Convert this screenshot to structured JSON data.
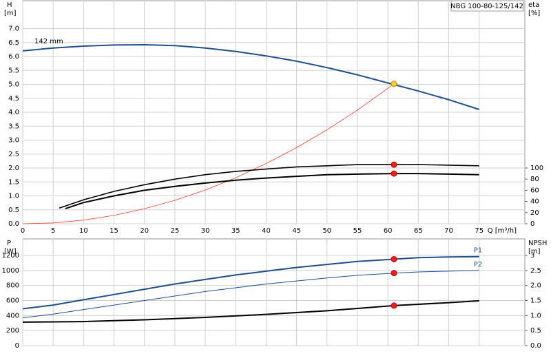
{
  "chart_data": [
    {
      "type": "line",
      "title": "NBG 100-80-125/142",
      "ylabel": "H",
      "yunit": "[m]",
      "y2label": "eta",
      "y2unit": "[%]",
      "xlabel": "Q [m³/h]",
      "xlim": [
        0,
        82.5
      ],
      "xticks": [
        0,
        5,
        10,
        15,
        20,
        25,
        30,
        35,
        40,
        45,
        50,
        55,
        60,
        65,
        70,
        75
      ],
      "xtick_labels": true,
      "ylim": [
        0,
        8
      ],
      "yticks": [
        {
          "value": 0,
          "label": "0.0"
        },
        0.5,
        {
          "value": 1,
          "label": "1.0"
        },
        1.5,
        {
          "value": 2,
          "label": "2.0"
        },
        2.5,
        {
          "value": 3,
          "label": "3.0"
        },
        3.5,
        {
          "value": 4,
          "label": "4.0"
        },
        4.5,
        {
          "value": 5,
          "label": "5.0"
        },
        5.5,
        {
          "value": 6,
          "label": "6.0"
        },
        6.5,
        {
          "value": 7,
          "label": "7.0"
        }
      ],
      "y2lim": [
        0,
        400
      ],
      "y2ticks": [
        0,
        20,
        40,
        60,
        80,
        100
      ],
      "grid": true,
      "series": [
        {
          "name": "142 mm",
          "label_at": "start",
          "color": "#1f4e8c",
          "width": 2,
          "x": [
            0,
            5,
            10,
            15,
            20,
            25,
            30,
            35,
            40,
            45,
            50,
            55,
            60,
            65,
            70,
            75
          ],
          "values": [
            6.2,
            6.3,
            6.37,
            6.41,
            6.42,
            6.39,
            6.3,
            6.18,
            6.02,
            5.83,
            5.6,
            5.34,
            5.05,
            4.76,
            4.45,
            4.1
          ]
        },
        {
          "color": "#ff3b30",
          "width": 0.8,
          "x": [
            0,
            5,
            10,
            15,
            20,
            25,
            30,
            35,
            40,
            45,
            50,
            55,
            60,
            61
          ],
          "values": [
            0,
            0.03,
            0.13,
            0.3,
            0.54,
            0.84,
            1.21,
            1.65,
            2.16,
            2.73,
            3.37,
            4.08,
            4.86,
            5.02
          ]
        },
        {
          "color": "#000000",
          "width": 1.6,
          "axis": "y2",
          "x": [
            6,
            10,
            15,
            20,
            25,
            30,
            35,
            40,
            45,
            50,
            55,
            61,
            65,
            70,
            75
          ],
          "values": [
            28,
            43,
            58,
            70,
            80,
            88,
            94,
            98,
            102,
            104,
            106,
            106,
            106,
            105,
            104
          ]
        },
        {
          "color": "#000000",
          "width": 2,
          "axis": "y2",
          "x": [
            7,
            10,
            15,
            20,
            25,
            30,
            35,
            40,
            45,
            50,
            55,
            61,
            65,
            70,
            75
          ],
          "values": [
            27,
            38,
            50,
            60,
            67,
            73,
            78,
            82,
            85,
            88,
            89,
            90,
            90,
            89,
            88
          ]
        },
        {
          "marker": true,
          "color": "#ffd21f",
          "stroke": "#c08a00",
          "x": [
            61
          ],
          "values": [
            5.02
          ]
        },
        {
          "marker": true,
          "color": "#ff1a1a",
          "stroke": "#c00000",
          "axis": "y2",
          "x": [
            61
          ],
          "values": [
            106
          ]
        },
        {
          "marker": true,
          "color": "#ff1a1a",
          "stroke": "#c00000",
          "axis": "y2",
          "x": [
            61
          ],
          "values": [
            90
          ]
        }
      ]
    },
    {
      "type": "line",
      "ylabel": "P",
      "yunit": "[W]",
      "y2label": "NPSH",
      "y2unit": "[m]",
      "xlim": [
        0,
        82.5
      ],
      "xticks": [
        0,
        5,
        10,
        15,
        20,
        25,
        30,
        35,
        40,
        45,
        50,
        55,
        60,
        65,
        70,
        75
      ],
      "xtick_labels": false,
      "ylim": [
        0,
        1420
      ],
      "yticks": [
        0,
        200,
        400,
        600,
        800,
        1000,
        1200
      ],
      "y2lim": [
        0,
        3.55
      ],
      "y2ticks": [
        {
          "value": 0,
          "label": "0.0"
        },
        0.5,
        {
          "value": 1,
          "label": "1.0"
        },
        1.5,
        {
          "value": 2,
          "label": "2.0"
        },
        2.5,
        3
      ],
      "grid": true,
      "series": [
        {
          "name": "P1",
          "label_at": "end",
          "color": "#1f4e8c",
          "width": 2,
          "x": [
            0,
            5,
            10,
            15,
            20,
            25,
            30,
            35,
            40,
            45,
            50,
            55,
            61,
            65,
            70,
            75
          ],
          "values": [
            490,
            540,
            610,
            680,
            750,
            820,
            880,
            940,
            990,
            1040,
            1080,
            1120,
            1150,
            1170,
            1180,
            1185
          ]
        },
        {
          "name": "P2",
          "label_at": "end",
          "color": "#1f4e8c",
          "width": 1,
          "x": [
            0,
            5,
            10,
            15,
            20,
            25,
            30,
            35,
            40,
            45,
            50,
            55,
            61,
            65,
            70,
            75
          ],
          "values": [
            370,
            420,
            480,
            540,
            600,
            660,
            720,
            770,
            820,
            860,
            900,
            935,
            965,
            980,
            990,
            1000
          ]
        },
        {
          "color": "#000000",
          "width": 2,
          "axis": "y2",
          "x": [
            0,
            10,
            20,
            30,
            40,
            50,
            61,
            70,
            75
          ],
          "values": [
            0.78,
            0.8,
            0.86,
            0.94,
            1.04,
            1.16,
            1.33,
            1.43,
            1.49
          ]
        },
        {
          "marker": true,
          "color": "#ff1a1a",
          "stroke": "#c00000",
          "x": [
            61
          ],
          "values": [
            1150
          ]
        },
        {
          "marker": true,
          "color": "#ff1a1a",
          "stroke": "#c00000",
          "x": [
            61
          ],
          "values": [
            965
          ]
        },
        {
          "marker": true,
          "color": "#ff1a1a",
          "stroke": "#c00000",
          "axis": "y2",
          "x": [
            61
          ],
          "values": [
            1.33
          ]
        }
      ]
    }
  ]
}
